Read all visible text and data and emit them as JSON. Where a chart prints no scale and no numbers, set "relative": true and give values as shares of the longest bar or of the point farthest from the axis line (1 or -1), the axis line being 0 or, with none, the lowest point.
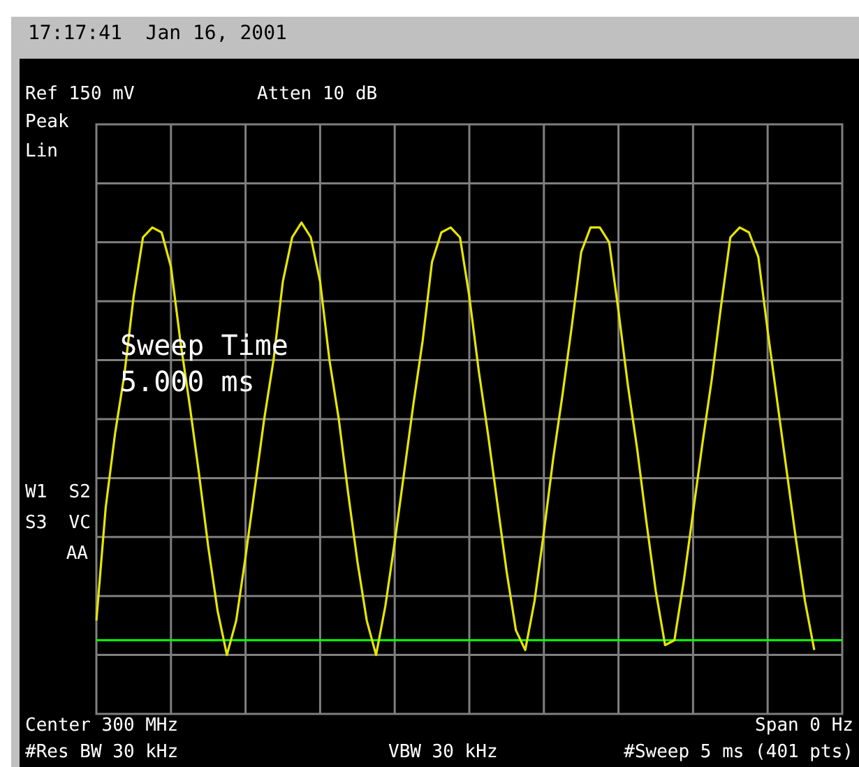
{
  "chart_data": {
    "type": "line",
    "title": "17:17:41  Jan 16, 2001",
    "annotations": [
      "Ref 150 mV",
      "Atten 10 dB",
      "Peak",
      "Lin",
      "W1  S2",
      "S3  VC",
      "AA",
      "Sweep Time\n5.000 ms",
      "Center 300 MHz",
      "Span 0 Hz",
      "#Res BW 30 kHz",
      "VBW 30 kHz",
      "#Sweep 5 ms (401 pts)"
    ],
    "categories": [
      null,
      null,
      null,
      null,
      null,
      null,
      null,
      null,
      null,
      null,
      null,
      null,
      null,
      null,
      null,
      null,
      null,
      null,
      null,
      null,
      null,
      null,
      null,
      null,
      null,
      null,
      null,
      null,
      null,
      null,
      null,
      null,
      null,
      null,
      null,
      null,
      null,
      null,
      null,
      null,
      null,
      null,
      null,
      null,
      null,
      null,
      null,
      null,
      null,
      null,
      null,
      null,
      null,
      null,
      null,
      null,
      null,
      null,
      null,
      null,
      null,
      null,
      null,
      null,
      null,
      null,
      null,
      null,
      null,
      null,
      null,
      null,
      null,
      null,
      null,
      null,
      null,
      null,
      null,
      null,
      null
    ],
    "relative": true,
    "series": [
      {
        "color": "#e6e600",
        "values": [
          0.19,
          0.42,
          0.57,
          0.69,
          0.85,
          0.97,
          0.99,
          0.98,
          0.91,
          0.76,
          0.63,
          0.49,
          0.34,
          0.21,
          0.12,
          0.19,
          0.32,
          0.46,
          0.6,
          0.72,
          0.88,
          0.97,
          1.0,
          0.97,
          0.88,
          0.72,
          0.6,
          0.45,
          0.31,
          0.19,
          0.12,
          0.22,
          0.35,
          0.49,
          0.63,
          0.76,
          0.92,
          0.98,
          0.99,
          0.97,
          0.85,
          0.7,
          0.57,
          0.43,
          0.29,
          0.17,
          0.13,
          0.23,
          0.37,
          0.52,
          0.65,
          0.79,
          0.94,
          0.99,
          0.99,
          0.96,
          0.82,
          0.67,
          0.54,
          0.39,
          0.25,
          0.14,
          0.15,
          0.27,
          0.41,
          0.55,
          0.68,
          0.83,
          0.97,
          0.99,
          0.98,
          0.93,
          0.78,
          0.64,
          0.5,
          0.36,
          0.23,
          0.13,
          null,
          null,
          null
        ]
      }
    ],
    "ref_lines": [
      {
        "axis": "y",
        "value": 0.15,
        "color": "#00ff00"
      }
    ],
    "grid": true,
    "marker": "none",
    "line_style": "solid"
  }
}
